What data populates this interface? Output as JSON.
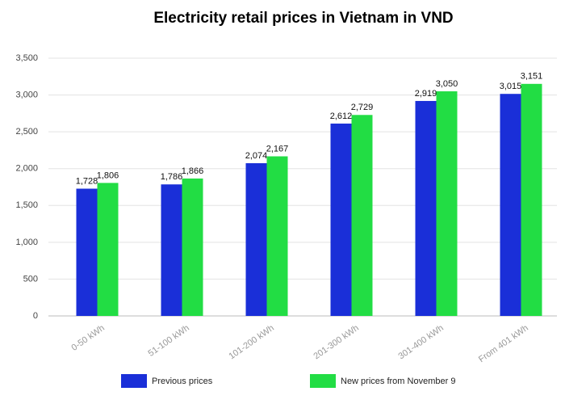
{
  "chart_data": {
    "type": "bar",
    "title": "Electricity retail prices in Vietnam in VND",
    "categories": [
      "0-50 kWh",
      "51-100 kWh",
      "101-200 kWh",
      "201-300 kWh",
      "301-400 kWh",
      "From 401 kWh"
    ],
    "series": [
      {
        "name": "Previous prices",
        "color": "#1a2fd8",
        "values": [
          1728,
          1786,
          2074,
          2612,
          2919,
          3015
        ],
        "value_labels": [
          "1,728",
          "1,786",
          "2,074",
          "2,612",
          "2,919",
          "3,015"
        ]
      },
      {
        "name": "New prices from November 9",
        "color": "#22dd44",
        "values": [
          1806,
          1866,
          2167,
          2729,
          3050,
          3151
        ],
        "value_labels": [
          "1,806",
          "1,866",
          "2,167",
          "2,729",
          "3,050",
          "3,151"
        ]
      }
    ],
    "ylim": [
      0,
      3500
    ],
    "yticks": [
      0,
      500,
      {
        "value": 1000,
        "label": "1,000"
      },
      {
        "value": 1500,
        "label": "1,500"
      },
      {
        "value": 2000,
        "label": "2,000"
      },
      {
        "value": 2500,
        "label": "2,500"
      },
      {
        "value": 3000,
        "label": "3,000"
      },
      {
        "value": 3500,
        "label": "3,500"
      }
    ],
    "grid": true
  }
}
